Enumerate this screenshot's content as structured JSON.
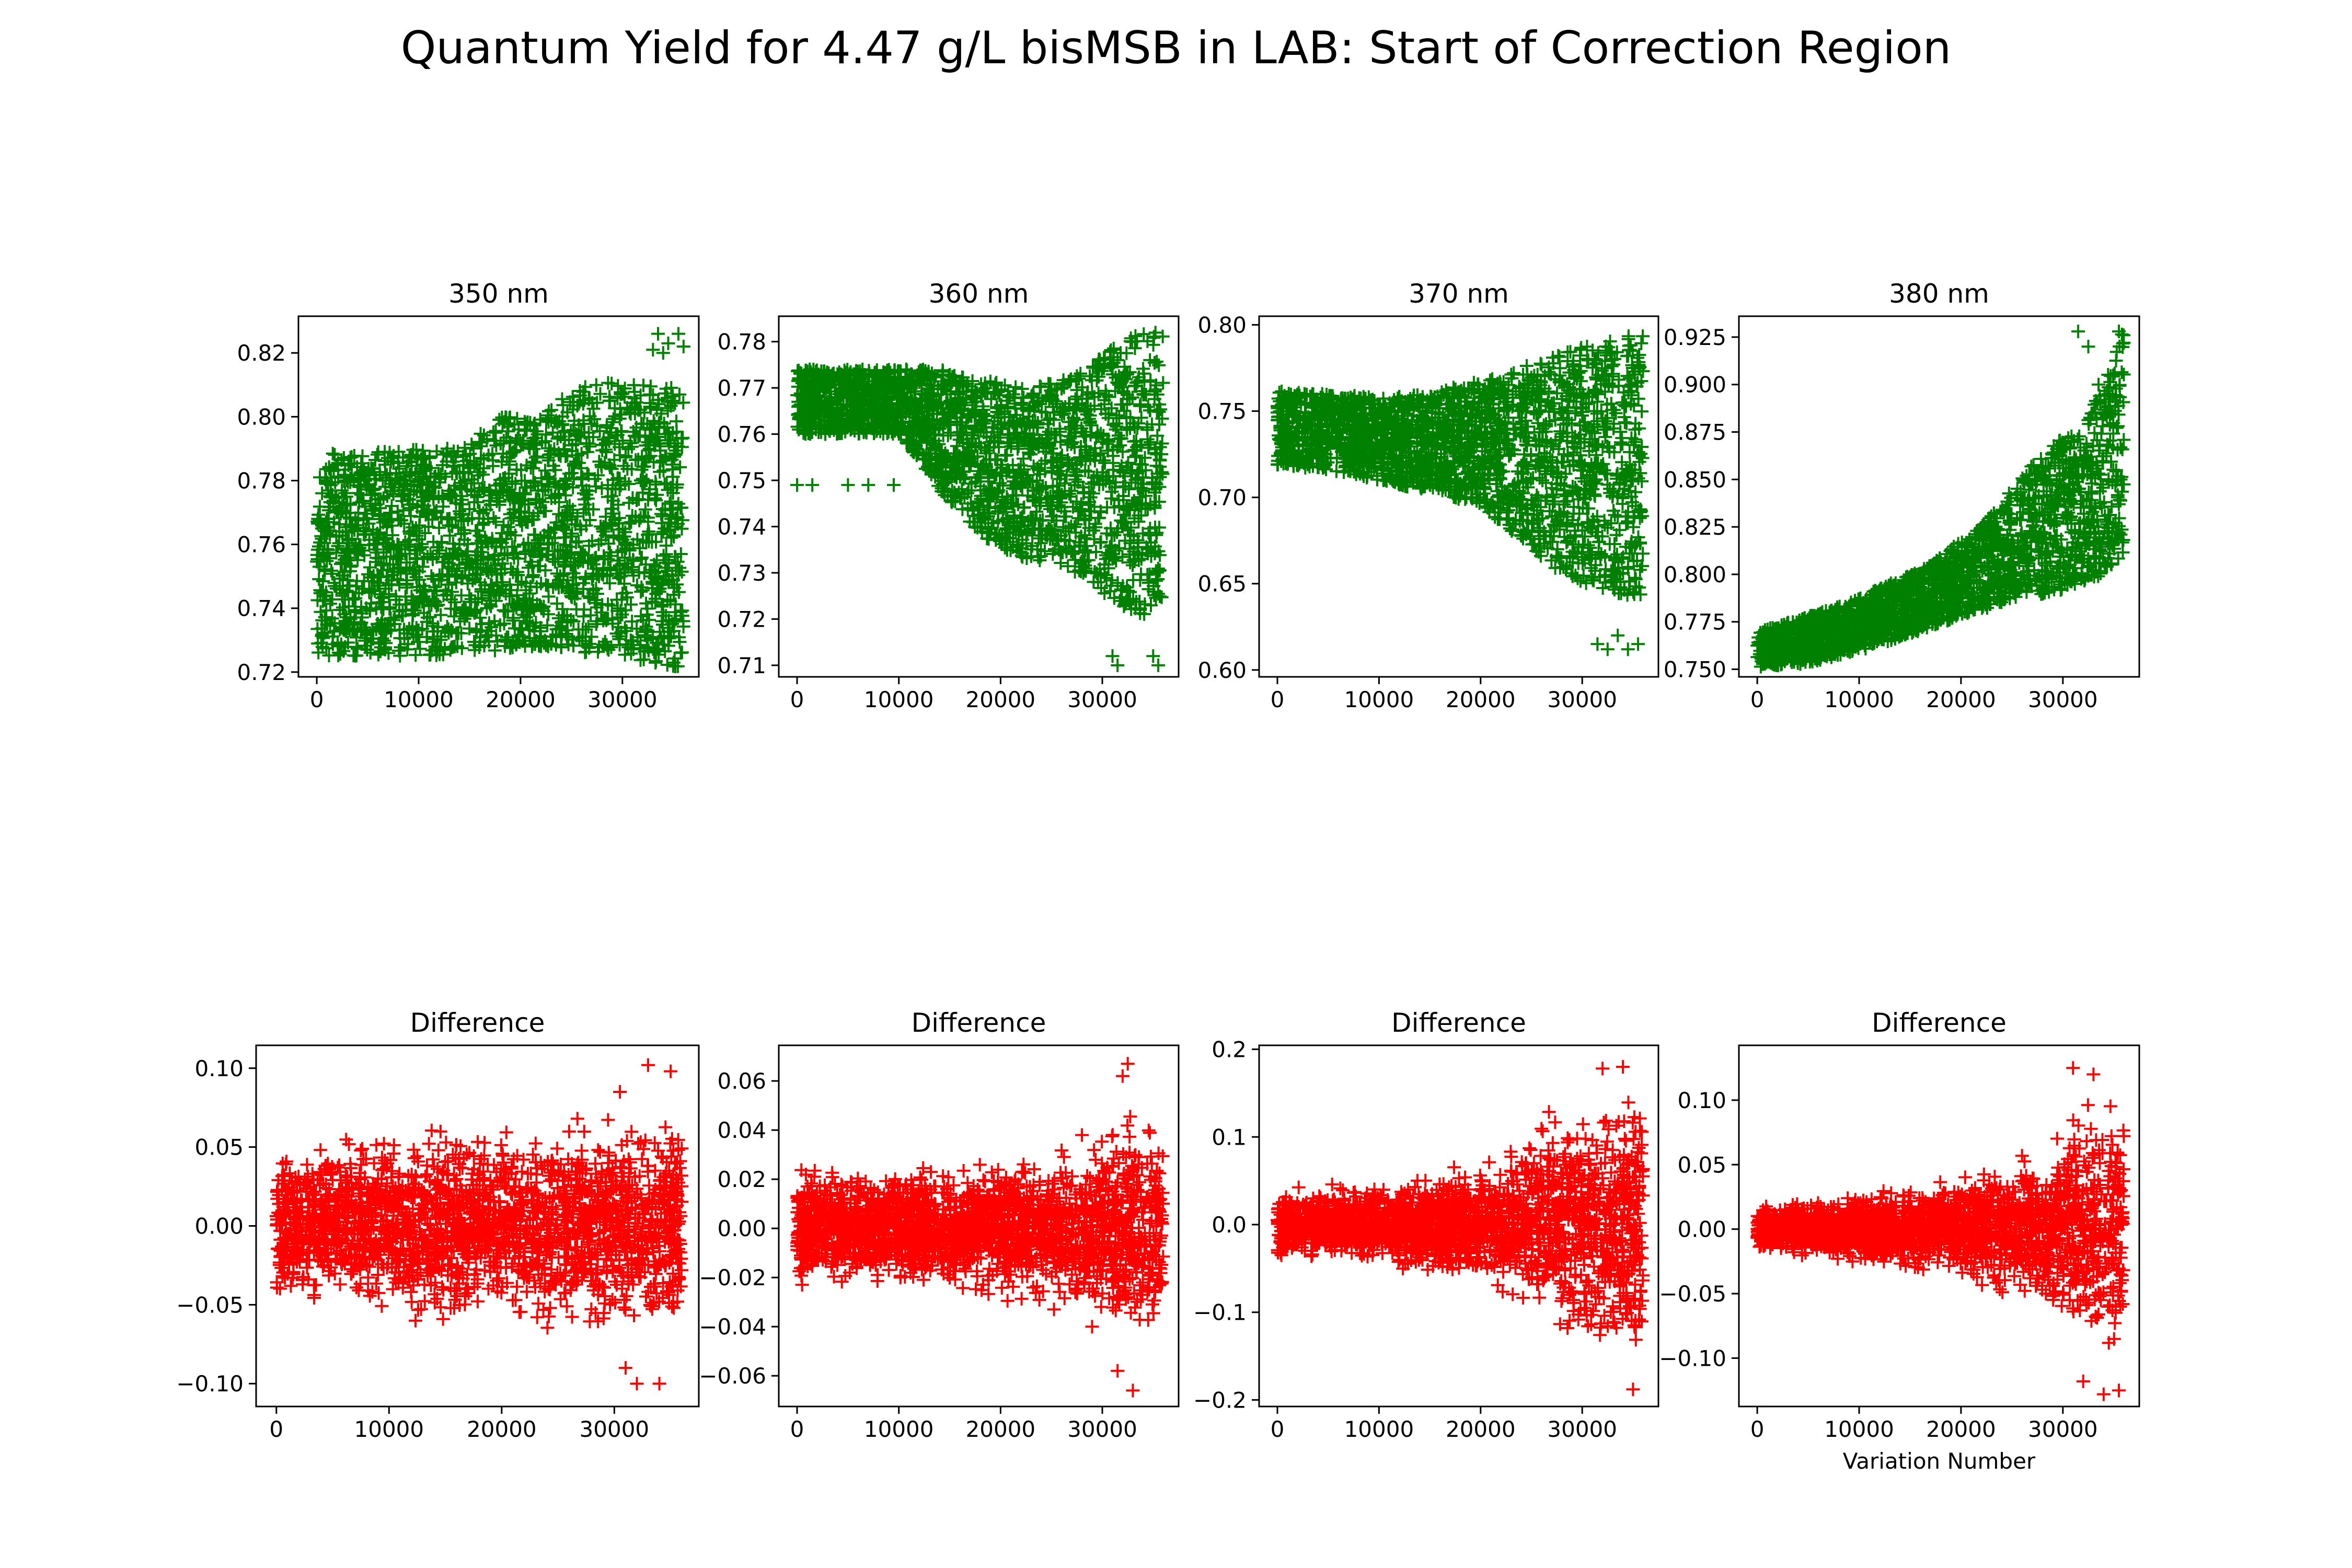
{
  "figure": {
    "title": "Quantum Yield for 4.47 g/L bisMSB in LAB: Start of Correction Region"
  },
  "chart_data": [
    {
      "type": "scatter",
      "title": "350 nm",
      "marker": "+",
      "color": "#008000",
      "xlim": [
        -1800,
        37500
      ],
      "ylim": [
        0.7185,
        0.8315
      ],
      "xticks": [
        0,
        10000,
        20000,
        30000
      ],
      "xtick_labels": [
        "0",
        "10000",
        "20000",
        "30000"
      ],
      "yticks": [
        0.72,
        0.74,
        0.76,
        0.78,
        0.8,
        0.82
      ],
      "ytick_labels": [
        "0.72",
        "0.74",
        "0.76",
        "0.78",
        "0.80",
        "0.82"
      ],
      "xlabel": "",
      "ylabel": "",
      "x_range": [
        0,
        36000
      ],
      "envelope": [
        [
          0,
          0.725,
          0.789
        ],
        [
          5000,
          0.725,
          0.789
        ],
        [
          10000,
          0.725,
          0.79
        ],
        [
          15000,
          0.725,
          0.792
        ],
        [
          18000,
          0.727,
          0.8
        ],
        [
          22000,
          0.728,
          0.8
        ],
        [
          25000,
          0.727,
          0.808
        ],
        [
          28000,
          0.725,
          0.811
        ],
        [
          32000,
          0.723,
          0.81
        ],
        [
          36000,
          0.721,
          0.81
        ]
      ],
      "outliers": [
        [
          33000,
          0.821
        ],
        [
          33500,
          0.826
        ],
        [
          34500,
          0.823
        ],
        [
          35500,
          0.826
        ],
        [
          36000,
          0.822
        ],
        [
          34000,
          0.82
        ]
      ]
    },
    {
      "type": "scatter",
      "title": "360 nm",
      "marker": "+",
      "color": "#008000",
      "xlim": [
        -1800,
        37500
      ],
      "ylim": [
        0.7075,
        0.7855
      ],
      "xticks": [
        0,
        10000,
        20000,
        30000
      ],
      "xtick_labels": [
        "0",
        "10000",
        "20000",
        "30000"
      ],
      "yticks": [
        0.71,
        0.72,
        0.73,
        0.74,
        0.75,
        0.76,
        0.77,
        0.78
      ],
      "ytick_labels": [
        "0.71",
        "0.72",
        "0.73",
        "0.74",
        "0.75",
        "0.76",
        "0.77",
        "0.78"
      ],
      "xlabel": "",
      "ylabel": "",
      "x_range": [
        0,
        36000
      ],
      "envelope": [
        [
          0,
          0.76,
          0.774
        ],
        [
          5000,
          0.76,
          0.774
        ],
        [
          10000,
          0.76,
          0.774
        ],
        [
          14000,
          0.748,
          0.774
        ],
        [
          18000,
          0.738,
          0.772
        ],
        [
          22000,
          0.733,
          0.77
        ],
        [
          26000,
          0.732,
          0.772
        ],
        [
          30000,
          0.726,
          0.777
        ],
        [
          33000,
          0.72,
          0.782
        ],
        [
          36000,
          0.722,
          0.782
        ]
      ],
      "outliers": [
        [
          0,
          0.749
        ],
        [
          1500,
          0.749
        ],
        [
          5000,
          0.749
        ],
        [
          7000,
          0.749
        ],
        [
          9500,
          0.749
        ],
        [
          31000,
          0.712
        ],
        [
          31500,
          0.71
        ],
        [
          35000,
          0.712
        ],
        [
          35500,
          0.71
        ]
      ]
    },
    {
      "type": "scatter",
      "title": "370 nm",
      "marker": "+",
      "color": "#008000",
      "xlim": [
        -1800,
        37500
      ],
      "ylim": [
        0.596,
        0.805
      ],
      "xticks": [
        0,
        10000,
        20000,
        30000
      ],
      "xtick_labels": [
        "0",
        "10000",
        "20000",
        "30000"
      ],
      "yticks": [
        0.6,
        0.65,
        0.7,
        0.75,
        0.8
      ],
      "ytick_labels": [
        "0.60",
        "0.65",
        "0.70",
        "0.75",
        "0.80"
      ],
      "xlabel": "",
      "ylabel": "",
      "x_range": [
        0,
        36000
      ],
      "envelope": [
        [
          0,
          0.718,
          0.762
        ],
        [
          5000,
          0.716,
          0.76
        ],
        [
          10000,
          0.71,
          0.758
        ],
        [
          15000,
          0.703,
          0.76
        ],
        [
          20000,
          0.695,
          0.768
        ],
        [
          24000,
          0.676,
          0.775
        ],
        [
          27000,
          0.66,
          0.782
        ],
        [
          31000,
          0.648,
          0.79
        ],
        [
          34000,
          0.643,
          0.795
        ],
        [
          36000,
          0.643,
          0.795
        ]
      ],
      "outliers": [
        [
          31500,
          0.615
        ],
        [
          32500,
          0.612
        ],
        [
          33500,
          0.62
        ],
        [
          34500,
          0.612
        ],
        [
          35500,
          0.615
        ]
      ]
    },
    {
      "type": "scatter",
      "title": "380 nm",
      "marker": "+",
      "color": "#008000",
      "xlim": [
        -1800,
        37500
      ],
      "ylim": [
        0.746,
        0.936
      ],
      "xticks": [
        0,
        10000,
        20000,
        30000
      ],
      "xtick_labels": [
        "0",
        "10000",
        "20000",
        "30000"
      ],
      "yticks": [
        0.75,
        0.775,
        0.8,
        0.825,
        0.85,
        0.875,
        0.9,
        0.925
      ],
      "ytick_labels": [
        "0.750",
        "0.775",
        "0.800",
        "0.825",
        "0.850",
        "0.875",
        "0.900",
        "0.925"
      ],
      "xlabel": "",
      "ylabel": "",
      "x_range": [
        0,
        36000
      ],
      "envelope": [
        [
          0,
          0.751,
          0.77
        ],
        [
          5000,
          0.753,
          0.778
        ],
        [
          9000,
          0.758,
          0.785
        ],
        [
          13000,
          0.765,
          0.795
        ],
        [
          17000,
          0.772,
          0.805
        ],
        [
          21000,
          0.78,
          0.822
        ],
        [
          25000,
          0.785,
          0.845
        ],
        [
          29000,
          0.79,
          0.87
        ],
        [
          32000,
          0.795,
          0.875
        ],
        [
          36000,
          0.805,
          0.93
        ]
      ],
      "outliers": [
        [
          31500,
          0.928
        ],
        [
          32500,
          0.92
        ],
        [
          33500,
          0.9
        ],
        [
          34500,
          0.895
        ],
        [
          35500,
          0.928
        ]
      ]
    },
    {
      "type": "scatter",
      "title": "Difference",
      "marker": "+",
      "color": "#ff0000",
      "xlim": [
        -1800,
        37500
      ],
      "ylim": [
        -0.1145,
        0.1145
      ],
      "xticks": [
        0,
        10000,
        20000,
        30000
      ],
      "xtick_labels": [
        "0",
        "10000",
        "20000",
        "30000"
      ],
      "yticks": [
        -0.1,
        -0.05,
        0.0,
        0.05,
        0.1
      ],
      "ytick_labels": [
        "−0.10",
        "−0.05",
        "0.00",
        "0.05",
        "0.10"
      ],
      "xlabel": "",
      "ylabel": "",
      "x_range": [
        0,
        36000
      ],
      "envelope": [
        [
          0,
          -0.055,
          0.055
        ],
        [
          5000,
          -0.058,
          0.06
        ],
        [
          10000,
          -0.06,
          0.062
        ],
        [
          15000,
          -0.063,
          0.065
        ],
        [
          20000,
          -0.066,
          0.068
        ],
        [
          25000,
          -0.07,
          0.07
        ],
        [
          30000,
          -0.076,
          0.078
        ],
        [
          36000,
          -0.08,
          0.08
        ]
      ],
      "outliers": [
        [
          33000,
          0.102
        ],
        [
          35000,
          0.098
        ],
        [
          32000,
          -0.1
        ],
        [
          34000,
          -0.1
        ],
        [
          30500,
          0.085
        ],
        [
          31000,
          -0.09
        ]
      ]
    },
    {
      "type": "scatter",
      "title": "Difference",
      "marker": "+",
      "color": "#ff0000",
      "xlim": [
        -1800,
        37500
      ],
      "ylim": [
        -0.0725,
        0.0745
      ],
      "xticks": [
        0,
        10000,
        20000,
        30000
      ],
      "xtick_labels": [
        "0",
        "10000",
        "20000",
        "30000"
      ],
      "yticks": [
        -0.06,
        -0.04,
        -0.02,
        0.0,
        0.02,
        0.04,
        0.06
      ],
      "ytick_labels": [
        "−0.06",
        "−0.04",
        "−0.02",
        "0.00",
        "0.02",
        "0.04",
        "0.06"
      ],
      "xlabel": "",
      "ylabel": "",
      "x_range": [
        0,
        36000
      ],
      "envelope": [
        [
          0,
          -0.026,
          0.026
        ],
        [
          5000,
          -0.026,
          0.026
        ],
        [
          10000,
          -0.026,
          0.026
        ],
        [
          15000,
          -0.028,
          0.028
        ],
        [
          20000,
          -0.03,
          0.03
        ],
        [
          25000,
          -0.033,
          0.033
        ],
        [
          30000,
          -0.042,
          0.042
        ],
        [
          33000,
          -0.05,
          0.05
        ],
        [
          36000,
          -0.045,
          0.045
        ]
      ],
      "outliers": [
        [
          32000,
          0.062
        ],
        [
          32500,
          0.067
        ],
        [
          33000,
          -0.066
        ],
        [
          31500,
          -0.058
        ],
        [
          28000,
          0.038
        ],
        [
          29000,
          -0.04
        ]
      ]
    },
    {
      "type": "scatter",
      "title": "Difference",
      "marker": "+",
      "color": "#ff0000",
      "xlim": [
        -1800,
        37500
      ],
      "ylim": [
        -0.2075,
        0.2045
      ],
      "xticks": [
        0,
        10000,
        20000,
        30000
      ],
      "xtick_labels": [
        "0",
        "10000",
        "20000",
        "30000"
      ],
      "yticks": [
        -0.2,
        -0.1,
        0.0,
        0.1,
        0.2
      ],
      "ytick_labels": [
        "−0.2",
        "−0.1",
        "0.0",
        "0.1",
        "0.2"
      ],
      "xlabel": "",
      "ylabel": "",
      "x_range": [
        0,
        36000
      ],
      "envelope": [
        [
          0,
          -0.045,
          0.045
        ],
        [
          5000,
          -0.045,
          0.045
        ],
        [
          10000,
          -0.048,
          0.048
        ],
        [
          15000,
          -0.055,
          0.055
        ],
        [
          20000,
          -0.075,
          0.075
        ],
        [
          24000,
          -0.1,
          0.11
        ],
        [
          27000,
          -0.13,
          0.14
        ],
        [
          31000,
          -0.17,
          0.175
        ],
        [
          36000,
          -0.18,
          0.178
        ]
      ],
      "outliers": [
        [
          35000,
          -0.188
        ],
        [
          32000,
          0.178
        ],
        [
          34000,
          0.18
        ]
      ]
    },
    {
      "type": "scatter",
      "title": "Difference",
      "marker": "+",
      "color": "#ff0000",
      "xlim": [
        -1800,
        37500
      ],
      "ylim": [
        -0.1375,
        0.1425
      ],
      "xticks": [
        0,
        10000,
        20000,
        30000
      ],
      "xtick_labels": [
        "0",
        "10000",
        "20000",
        "30000"
      ],
      "yticks": [
        -0.1,
        -0.05,
        0.0,
        0.05,
        0.1
      ],
      "ytick_labels": [
        "−0.10",
        "−0.05",
        "0.00",
        "0.05",
        "0.10"
      ],
      "xlabel": "Variation Number",
      "ylabel": "",
      "x_range": [
        0,
        36000
      ],
      "envelope": [
        [
          0,
          -0.02,
          0.02
        ],
        [
          5000,
          -0.025,
          0.025
        ],
        [
          10000,
          -0.03,
          0.03
        ],
        [
          15000,
          -0.035,
          0.035
        ],
        [
          20000,
          -0.042,
          0.045
        ],
        [
          25000,
          -0.055,
          0.058
        ],
        [
          29000,
          -0.07,
          0.075
        ],
        [
          32000,
          -0.1,
          0.11
        ],
        [
          36000,
          -0.12,
          0.118
        ]
      ],
      "outliers": [
        [
          31000,
          0.125
        ],
        [
          33000,
          0.12
        ],
        [
          34000,
          -0.128
        ],
        [
          35500,
          -0.125
        ],
        [
          32000,
          -0.118
        ]
      ]
    }
  ]
}
